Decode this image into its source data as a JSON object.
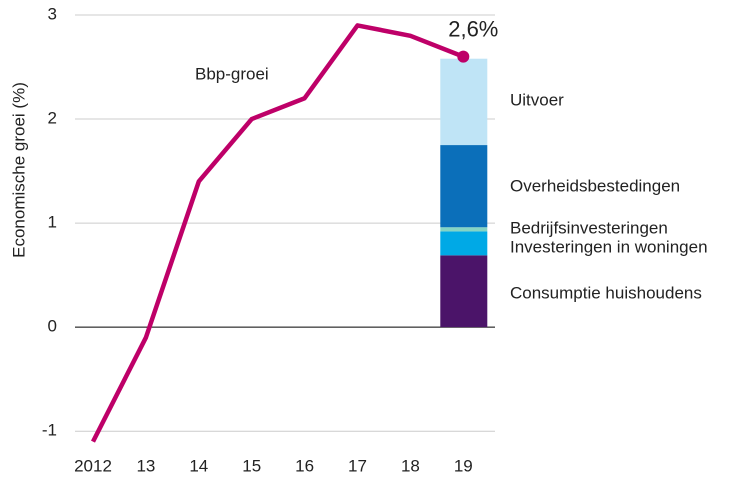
{
  "chart_data": {
    "type": "line-stacked-bar",
    "ylabel": "Economische groei (%)",
    "categories": [
      "2012",
      "13",
      "14",
      "15",
      "16",
      "17",
      "18",
      "19"
    ],
    "ylim": [
      -1.2,
      3
    ],
    "yticks": [
      -1,
      0,
      1,
      2,
      3
    ],
    "grid": true,
    "series": [
      {
        "name": "Bbp-groei",
        "type": "line",
        "color": "#be0068",
        "values": [
          -1.1,
          -0.1,
          1.4,
          2.0,
          2.2,
          2.9,
          2.8,
          2.6
        ],
        "value_labels": [
          null,
          null,
          null,
          null,
          null,
          null,
          null,
          "2,6%"
        ]
      },
      {
        "name": "Consumptie huishoudens",
        "type": "bar",
        "color": "#4b1469",
        "values": [
          null,
          null,
          null,
          null,
          null,
          null,
          null,
          0.69
        ]
      },
      {
        "name": "Investeringen in woningen",
        "type": "bar",
        "color": "#00a9e6",
        "values": [
          null,
          null,
          null,
          null,
          null,
          null,
          null,
          0.23
        ]
      },
      {
        "name": "Bedrijfsinvesteringen",
        "type": "bar",
        "color": "#84d4c4",
        "values": [
          null,
          null,
          null,
          null,
          null,
          null,
          null,
          0.04
        ]
      },
      {
        "name": "Overheidsbestedingen",
        "type": "bar",
        "color": "#0b6fba",
        "values": [
          null,
          null,
          null,
          null,
          null,
          null,
          null,
          0.79
        ]
      },
      {
        "name": "Uitvoer",
        "type": "bar",
        "color": "#bfe4f6",
        "values": [
          null,
          null,
          null,
          null,
          null,
          null,
          null,
          0.83
        ]
      }
    ]
  }
}
